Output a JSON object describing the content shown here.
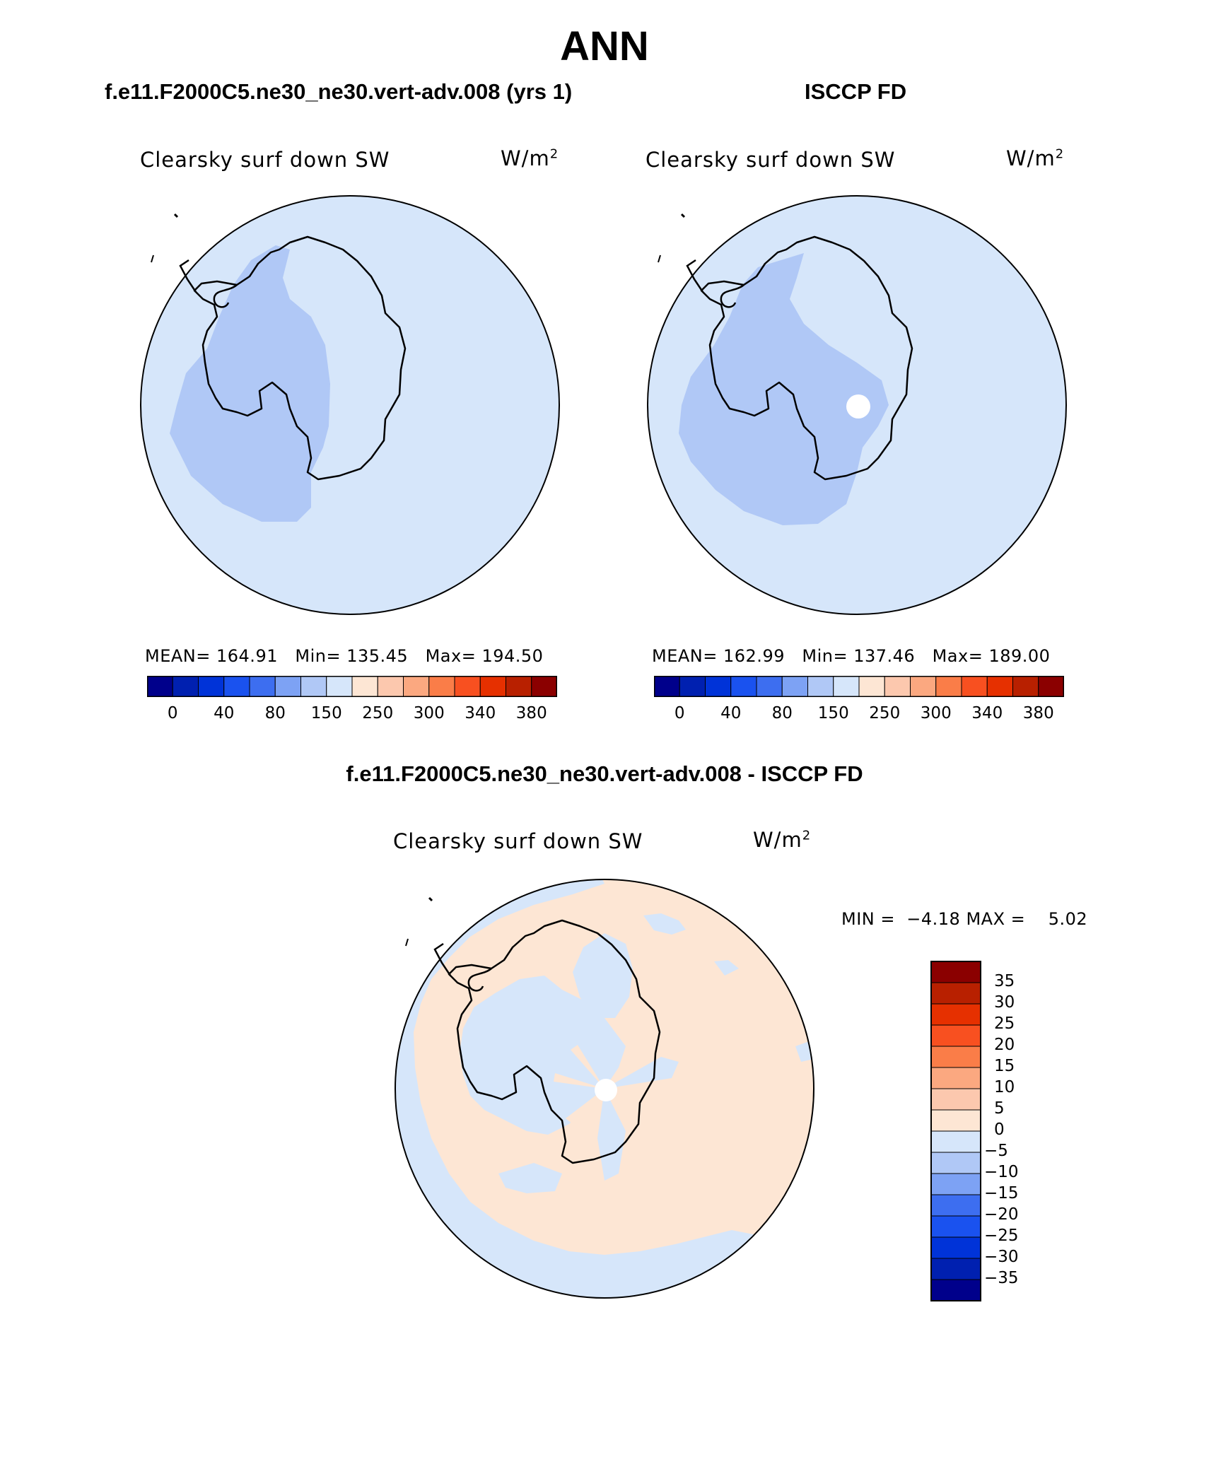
{
  "main_title": "ANN",
  "panels": {
    "left": {
      "title": "f.e11.F2000C5.ne30_ne30.vert-adv.008 (yrs 1)",
      "variable": "Clearsky surf down SW",
      "units": "W/m",
      "units_exp": "2",
      "mean_label": "MEAN=",
      "mean": "164.91",
      "min_label": "Min=",
      "min": "135.45",
      "max_label": "Max=",
      "max": "194.50"
    },
    "right": {
      "title": "ISCCP FD",
      "variable": "Clearsky surf down SW",
      "units": "W/m",
      "units_exp": "2",
      "mean_label": "MEAN=",
      "mean": "162.99",
      "min_label": "Min=",
      "min": "137.46",
      "max_label": "Max=",
      "max": "189.00"
    },
    "diff": {
      "title": "f.e11.F2000C5.ne30_ne30.vert-adv.008 - ISCCP FD",
      "variable": "Clearsky surf down SW",
      "units": "W/m",
      "units_exp": "2",
      "min_label": "MIN =",
      "min": "−4.18",
      "max_label": "MAX =",
      "max": "5.02"
    }
  },
  "horizontal_colorbar": {
    "colors": [
      "#00008b",
      "#0020b0",
      "#0033d8",
      "#1a52ef",
      "#3d6ef0",
      "#7da2f4",
      "#b0c8f6",
      "#d6e6fa",
      "#fde6d4",
      "#fcc8ae",
      "#fba880",
      "#fa7d48",
      "#f85020",
      "#e63000",
      "#b82000",
      "#8b0000"
    ],
    "tick_labels": [
      "0",
      "40",
      "80",
      "150",
      "250",
      "300",
      "340",
      "380"
    ]
  },
  "vertical_colorbar": {
    "colors_top_to_bottom": [
      "#8b0000",
      "#b82000",
      "#e63000",
      "#f85020",
      "#fa7d48",
      "#fba880",
      "#fcc8ae",
      "#fde6d4",
      "#d6e6fa",
      "#b0c8f6",
      "#7da2f4",
      "#3d6ef0",
      "#1a52ef",
      "#0033d8",
      "#0020b0",
      "#00008b"
    ],
    "tick_labels_top_to_bottom": [
      "35",
      "30",
      "25",
      "20",
      "15",
      "10",
      "5",
      "0",
      "−5",
      "−10",
      "−15",
      "−20",
      "−25",
      "−30",
      "−35"
    ]
  },
  "map_colors": {
    "ocean_fill": "#d6e6fa",
    "low_fill": "#b0c8f6",
    "positive_fill": "#fde6d4",
    "missing_fill": "#ffffff",
    "coast": "#000000"
  }
}
